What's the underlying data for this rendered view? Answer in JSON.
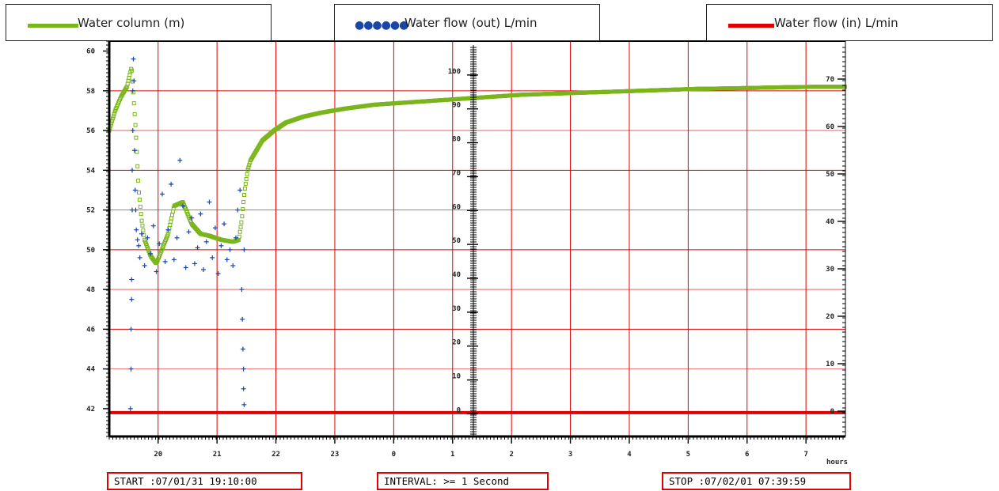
{
  "legend": [
    {
      "label": "Water column (m)",
      "color": "#7ab51d",
      "style": "line"
    },
    {
      "label": "Water flow (out) L/min",
      "color": "#1a46a8",
      "style": "dots"
    },
    {
      "label": "Water flow (in) L/min",
      "color": "#e00000",
      "style": "line"
    }
  ],
  "info": {
    "start": "START :07/01/31 19:10:00",
    "interval": "INTERVAL: >= 1 Second",
    "stop": "STOP :07/02/01 07:39:59"
  },
  "chart_data": {
    "type": "scatter",
    "title": "",
    "xlabel": "hours",
    "x_tick_labels": [
      "20",
      "21",
      "22",
      "23",
      "0",
      "1",
      "2",
      "3",
      "4",
      "5",
      "6",
      "7"
    ],
    "x_tick_hours_elapsed": [
      0.83,
      1.83,
      2.83,
      3.83,
      4.83,
      5.83,
      6.83,
      7.83,
      8.83,
      9.83,
      10.83,
      11.83
    ],
    "xlim_hours_elapsed": [
      0,
      12.5
    ],
    "left_axis": {
      "ylim": [
        41,
        60.5
      ],
      "ticks": [
        42,
        44,
        46,
        48,
        50,
        52,
        54,
        56,
        58,
        60
      ],
      "unit": "m"
    },
    "middle_axis": {
      "ylim": [
        -2,
        110
      ],
      "ticks": [
        0,
        10,
        20,
        30,
        40,
        50,
        60,
        70,
        80,
        90,
        100
      ]
    },
    "right_axis": {
      "ylim": [
        -2,
        78
      ],
      "ticks": [
        0,
        10,
        20,
        30,
        40,
        50,
        60,
        70
      ]
    },
    "grid": true,
    "colors": {
      "grid": "#e00000",
      "axis": "#000000"
    },
    "series": [
      {
        "name": "Water column (m)",
        "axis": "left",
        "color": "#7ab51d",
        "x": [
          0,
          0.1,
          0.2,
          0.3,
          0.38,
          0.45,
          0.5,
          0.55,
          0.6,
          0.7,
          0.8,
          1.0,
          1.1,
          1.25,
          1.4,
          1.55,
          1.7,
          1.9,
          2.1,
          2.2,
          2.25,
          2.3,
          2.35,
          2.4,
          2.5,
          2.6,
          2.8,
          3.0,
          3.3,
          3.6,
          4.0,
          4.5,
          5.0,
          5.5,
          6.0,
          6.5,
          7.0,
          7.5,
          8.0,
          8.5,
          9.0,
          9.5,
          10.0,
          10.5,
          11.0,
          11.5,
          12.0,
          12.5
        ],
        "y": [
          56.0,
          57.0,
          57.7,
          58.2,
          59.2,
          56.0,
          53.0,
          51.5,
          50.5,
          49.7,
          49.3,
          50.8,
          52.2,
          52.4,
          51.3,
          50.8,
          50.7,
          50.5,
          50.4,
          50.5,
          51.5,
          53.0,
          54.0,
          54.5,
          55.0,
          55.5,
          56.0,
          56.4,
          56.7,
          56.9,
          57.1,
          57.3,
          57.4,
          57.5,
          57.6,
          57.7,
          57.8,
          57.85,
          57.9,
          57.95,
          58.0,
          58.05,
          58.1,
          58.12,
          58.15,
          58.18,
          58.2,
          58.2
        ]
      },
      {
        "name": "Water flow (out) L/min",
        "axis": "left",
        "color": "#1a46a8",
        "x": [
          0.36,
          0.37,
          0.37,
          0.38,
          0.38,
          0.39,
          0.39,
          0.4,
          0.4,
          0.41,
          0.42,
          0.43,
          0.44,
          0.45,
          0.46,
          0.48,
          0.5,
          0.52,
          0.55,
          0.6,
          0.65,
          0.7,
          0.75,
          0.8,
          0.85,
          0.9,
          0.95,
          1.0,
          1.05,
          1.1,
          1.15,
          1.2,
          1.25,
          1.3,
          1.35,
          1.4,
          1.45,
          1.5,
          1.55,
          1.6,
          1.65,
          1.7,
          1.75,
          1.8,
          1.85,
          1.9,
          1.95,
          2.0,
          2.05,
          2.1,
          2.15,
          2.18,
          2.22,
          2.25,
          2.26,
          2.27,
          2.28,
          2.28,
          2.29,
          2.29
        ],
        "y": [
          42.0,
          44.0,
          46.0,
          47.5,
          48.5,
          52.0,
          54.0,
          56.0,
          58.0,
          59.6,
          58.5,
          55.0,
          53.0,
          52.0,
          51.0,
          50.5,
          50.2,
          49.6,
          50.8,
          49.2,
          50.6,
          49.8,
          51.2,
          48.9,
          50.3,
          52.8,
          49.4,
          51.0,
          53.3,
          49.5,
          50.6,
          54.5,
          52.2,
          49.1,
          50.9,
          51.6,
          49.3,
          50.1,
          51.8,
          49.0,
          50.4,
          52.4,
          49.6,
          51.1,
          48.8,
          50.2,
          51.3,
          49.5,
          50.0,
          49.2,
          50.6,
          52.0,
          53.0,
          48.0,
          46.5,
          45.0,
          44.0,
          43.0,
          42.2,
          50.0
        ]
      },
      {
        "name": "Water flow (in) L/min",
        "axis": "left",
        "color": "#e00000",
        "x": [
          0,
          12.5
        ],
        "y": [
          41.8,
          41.8
        ]
      }
    ]
  }
}
